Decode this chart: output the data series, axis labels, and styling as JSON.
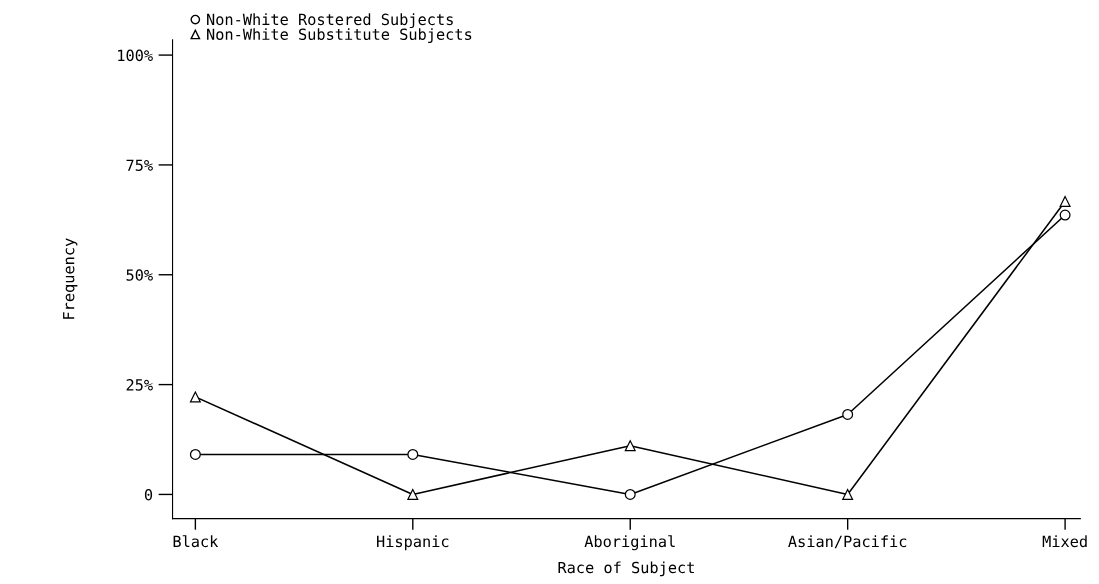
{
  "chart_data": {
    "type": "line",
    "xlabel": "Race of Subject",
    "ylabel": "Frequency",
    "categories": [
      "Black",
      "Hispanic",
      "Aboriginal",
      "Asian/Pacific",
      "Mixed"
    ],
    "series": [
      {
        "name": "Non-White Rostered Subjects",
        "color": "#000000",
        "marker": "circle",
        "values": [
          9.1,
          9.1,
          0,
          18.2,
          63.6
        ]
      },
      {
        "name": "Non-White Substitute Subjects",
        "color": "#000000",
        "marker": "triangle",
        "values": [
          22.2,
          0,
          11.1,
          0,
          66.7
        ]
      }
    ],
    "ylim": [
      -5.5,
      103.5
    ],
    "yticks": [
      0,
      {
        "value": 25,
        "label": "25%"
      },
      {
        "value": 50,
        "label": "50%"
      },
      {
        "value": 75,
        "label": "75%"
      },
      {
        "value": 100,
        "label": "100%"
      }
    ],
    "line_style": "solid",
    "grid": false,
    "legend": "top left"
  }
}
